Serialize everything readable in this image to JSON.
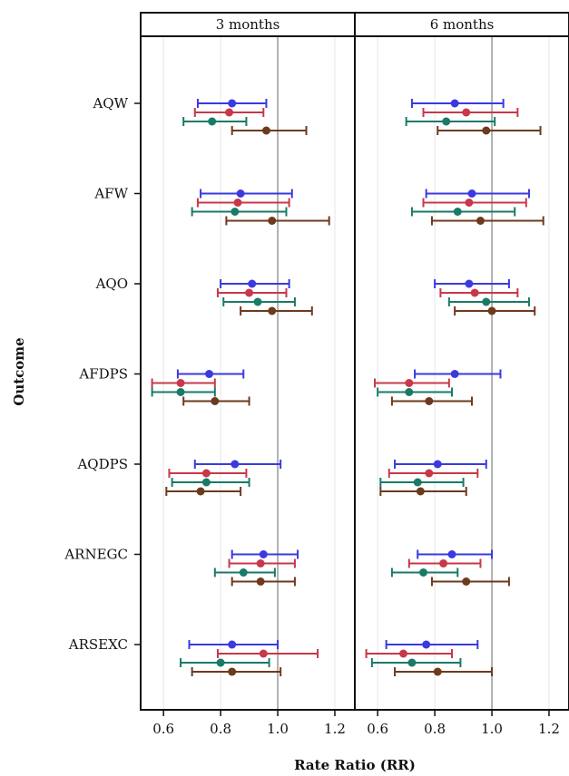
{
  "chart_data": {
    "type": "scatter",
    "subtype": "forest-plot-paneled",
    "xlabel": "Rate Ratio (RR)",
    "ylabel": "Outcome",
    "xlim": [
      0.52,
      1.27
    ],
    "xticks": [
      0.6,
      0.8,
      1.0,
      1.2
    ],
    "xtick_labels": [
      "0.6",
      "0.8",
      "1.0",
      "1.2"
    ],
    "reference_line": 1.0,
    "grid": "vertical",
    "categories": [
      "AQW",
      "AFW",
      "AQO",
      "AFDPS",
      "AQDPS",
      "ARNEGC",
      "ARSEXC"
    ],
    "series_colors": [
      "#3a3ae0",
      "#c8384a",
      "#1a7a66",
      "#6e3a1e"
    ],
    "panels": [
      {
        "title": "3 months",
        "rows": [
          [
            [
              0.84,
              0.72,
              0.96
            ],
            [
              0.83,
              0.71,
              0.95
            ],
            [
              0.77,
              0.67,
              0.89
            ],
            [
              0.96,
              0.84,
              1.1
            ]
          ],
          [
            [
              0.87,
              0.73,
              1.05
            ],
            [
              0.86,
              0.72,
              1.04
            ],
            [
              0.85,
              0.7,
              1.03
            ],
            [
              0.98,
              0.82,
              1.18
            ]
          ],
          [
            [
              0.91,
              0.8,
              1.04
            ],
            [
              0.9,
              0.79,
              1.03
            ],
            [
              0.93,
              0.81,
              1.06
            ],
            [
              0.98,
              0.87,
              1.12
            ]
          ],
          [
            [
              0.76,
              0.65,
              0.88
            ],
            [
              0.66,
              0.56,
              0.78
            ],
            [
              0.66,
              0.56,
              0.78
            ],
            [
              0.78,
              0.67,
              0.9
            ]
          ],
          [
            [
              0.85,
              0.71,
              1.01
            ],
            [
              0.75,
              0.62,
              0.89
            ],
            [
              0.75,
              0.63,
              0.9
            ],
            [
              0.73,
              0.61,
              0.87
            ]
          ],
          [
            [
              0.95,
              0.84,
              1.07
            ],
            [
              0.94,
              0.83,
              1.06
            ],
            [
              0.88,
              0.78,
              0.99
            ],
            [
              0.94,
              0.84,
              1.06
            ]
          ],
          [
            [
              0.84,
              0.69,
              1.0
            ],
            [
              0.95,
              0.79,
              1.14
            ],
            [
              0.8,
              0.66,
              0.97
            ],
            [
              0.84,
              0.7,
              1.01
            ]
          ]
        ]
      },
      {
        "title": "6 months",
        "rows": [
          [
            [
              0.87,
              0.72,
              1.04
            ],
            [
              0.91,
              0.76,
              1.09
            ],
            [
              0.84,
              0.7,
              1.01
            ],
            [
              0.98,
              0.81,
              1.17
            ]
          ],
          [
            [
              0.93,
              0.77,
              1.13
            ],
            [
              0.92,
              0.76,
              1.12
            ],
            [
              0.88,
              0.72,
              1.08
            ],
            [
              0.96,
              0.79,
              1.18
            ]
          ],
          [
            [
              0.92,
              0.8,
              1.06
            ],
            [
              0.94,
              0.82,
              1.09
            ],
            [
              0.98,
              0.85,
              1.13
            ],
            [
              1.0,
              0.87,
              1.15
            ]
          ],
          [
            [
              0.87,
              0.73,
              1.03
            ],
            [
              0.71,
              0.59,
              0.85
            ],
            [
              0.71,
              0.6,
              0.86
            ],
            [
              0.78,
              0.65,
              0.93
            ]
          ],
          [
            [
              0.81,
              0.66,
              0.98
            ],
            [
              0.78,
              0.64,
              0.95
            ],
            [
              0.74,
              0.61,
              0.9
            ],
            [
              0.75,
              0.61,
              0.91
            ]
          ],
          [
            [
              0.86,
              0.74,
              1.0
            ],
            [
              0.83,
              0.71,
              0.96
            ],
            [
              0.76,
              0.65,
              0.88
            ],
            [
              0.91,
              0.79,
              1.06
            ]
          ],
          [
            [
              0.77,
              0.63,
              0.95
            ],
            [
              0.69,
              0.56,
              0.86
            ],
            [
              0.72,
              0.58,
              0.89
            ],
            [
              0.81,
              0.66,
              1.0
            ]
          ]
        ]
      }
    ]
  }
}
